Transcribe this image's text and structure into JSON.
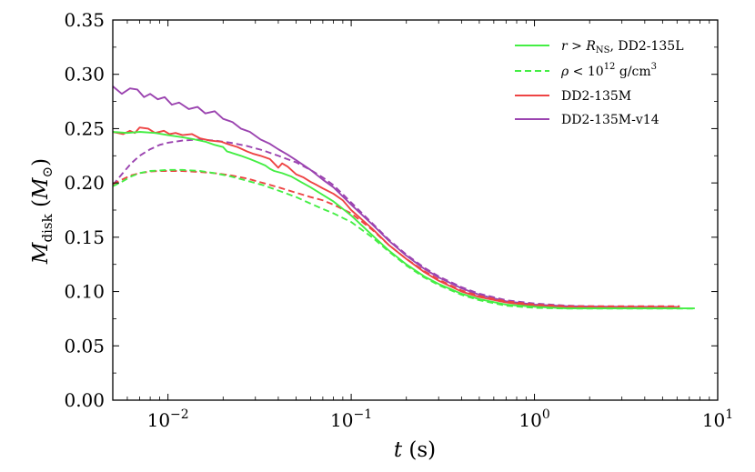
{
  "chart_data": {
    "type": "line",
    "title": "",
    "xlabel": "t (s)",
    "ylabel": "M_disk (M_⊙)",
    "xscale": "log",
    "xlim": [
      0.005,
      10
    ],
    "ylim": [
      0.0,
      0.35
    ],
    "grid": false,
    "legend_position": "top-right",
    "x_ticks": [
      {
        "value": 0.01,
        "base": "10",
        "exp": "−2"
      },
      {
        "value": 0.1,
        "base": "10",
        "exp": "−1"
      },
      {
        "value": 1,
        "base": "10",
        "exp": "0"
      },
      {
        "value": 10,
        "base": "10",
        "exp": "1"
      }
    ],
    "y_ticks": [
      "0.00",
      "0.05",
      "0.10",
      "0.15",
      "0.20",
      "0.25",
      "0.30",
      "0.35"
    ],
    "legend": [
      {
        "label_parts": [
          "r",
          " > ",
          "R",
          "NS",
          ", DD2-135L"
        ],
        "color": "#44ee44",
        "dash": "solid"
      },
      {
        "label_parts": [
          "ρ",
          " < 10",
          "12",
          " g/cm",
          "3"
        ],
        "color": "#44ee44",
        "dash": "dashed"
      },
      {
        "label": "DD2-135M",
        "color": "#ee4444",
        "dash": "solid"
      },
      {
        "label": "DD2-135M-v14",
        "color": "#9b44b0",
        "dash": "solid"
      }
    ],
    "series": [
      {
        "name": "DD2-135M-v14 (r > R_NS)",
        "color": "#9b44b0",
        "dash": "solid",
        "points": [
          [
            0.005,
            0.289
          ],
          [
            0.0056,
            0.282
          ],
          [
            0.0062,
            0.287
          ],
          [
            0.0068,
            0.286
          ],
          [
            0.0074,
            0.279
          ],
          [
            0.008,
            0.282
          ],
          [
            0.0088,
            0.277
          ],
          [
            0.0096,
            0.279
          ],
          [
            0.0105,
            0.272
          ],
          [
            0.0115,
            0.274
          ],
          [
            0.013,
            0.268
          ],
          [
            0.0145,
            0.27
          ],
          [
            0.016,
            0.264
          ],
          [
            0.018,
            0.266
          ],
          [
            0.02,
            0.259
          ],
          [
            0.0225,
            0.256
          ],
          [
            0.025,
            0.25
          ],
          [
            0.028,
            0.247
          ],
          [
            0.032,
            0.24
          ],
          [
            0.036,
            0.236
          ],
          [
            0.04,
            0.231
          ],
          [
            0.045,
            0.226
          ],
          [
            0.05,
            0.221
          ],
          [
            0.06,
            0.212
          ],
          [
            0.07,
            0.203
          ],
          [
            0.08,
            0.196
          ],
          [
            0.1,
            0.18
          ],
          [
            0.13,
            0.162
          ],
          [
            0.16,
            0.147
          ],
          [
            0.2,
            0.133
          ],
          [
            0.25,
            0.121
          ],
          [
            0.3,
            0.113
          ],
          [
            0.4,
            0.103
          ],
          [
            0.5,
            0.097
          ],
          [
            0.7,
            0.091
          ],
          [
            1.0,
            0.088
          ],
          [
            1.5,
            0.0865
          ],
          [
            2,
            0.0862
          ],
          [
            3,
            0.086
          ],
          [
            4,
            0.086
          ],
          [
            6.2,
            0.0858
          ]
        ]
      },
      {
        "name": "DD2-135M-v14 (ρ < 10^12)",
        "color": "#9b44b0",
        "dash": "dashed",
        "points": [
          [
            0.005,
            0.198
          ],
          [
            0.0056,
            0.208
          ],
          [
            0.0063,
            0.218
          ],
          [
            0.007,
            0.225
          ],
          [
            0.008,
            0.231
          ],
          [
            0.009,
            0.235
          ],
          [
            0.01,
            0.237
          ],
          [
            0.012,
            0.239
          ],
          [
            0.015,
            0.24
          ],
          [
            0.018,
            0.239
          ],
          [
            0.022,
            0.237
          ],
          [
            0.027,
            0.234
          ],
          [
            0.033,
            0.23
          ],
          [
            0.04,
            0.225
          ],
          [
            0.05,
            0.219
          ],
          [
            0.06,
            0.212
          ],
          [
            0.07,
            0.205
          ],
          [
            0.08,
            0.198
          ],
          [
            0.1,
            0.182
          ],
          [
            0.13,
            0.163
          ],
          [
            0.16,
            0.148
          ],
          [
            0.2,
            0.134
          ],
          [
            0.25,
            0.122
          ],
          [
            0.3,
            0.114
          ],
          [
            0.4,
            0.104
          ],
          [
            0.5,
            0.098
          ],
          [
            0.7,
            0.092
          ],
          [
            1.0,
            0.089
          ],
          [
            1.5,
            0.087
          ],
          [
            2,
            0.0865
          ],
          [
            3,
            0.086
          ],
          [
            4,
            0.086
          ],
          [
            6.2,
            0.086
          ]
        ]
      },
      {
        "name": "DD2-135M (r > R_NS)",
        "color": "#ee4444",
        "dash": "solid",
        "points": [
          [
            0.005,
            0.247
          ],
          [
            0.0057,
            0.245
          ],
          [
            0.0062,
            0.248
          ],
          [
            0.0066,
            0.246
          ],
          [
            0.007,
            0.251
          ],
          [
            0.0078,
            0.25
          ],
          [
            0.0085,
            0.246
          ],
          [
            0.0095,
            0.248
          ],
          [
            0.0102,
            0.245
          ],
          [
            0.011,
            0.246
          ],
          [
            0.012,
            0.244
          ],
          [
            0.0135,
            0.245
          ],
          [
            0.015,
            0.241
          ],
          [
            0.017,
            0.239
          ],
          [
            0.0195,
            0.238
          ],
          [
            0.021,
            0.236
          ],
          [
            0.024,
            0.233
          ],
          [
            0.027,
            0.229
          ],
          [
            0.029,
            0.227
          ],
          [
            0.032,
            0.225
          ],
          [
            0.036,
            0.222
          ],
          [
            0.04,
            0.214
          ],
          [
            0.042,
            0.218
          ],
          [
            0.045,
            0.215
          ],
          [
            0.05,
            0.208
          ],
          [
            0.055,
            0.205
          ],
          [
            0.06,
            0.201
          ],
          [
            0.065,
            0.198
          ],
          [
            0.07,
            0.195
          ],
          [
            0.08,
            0.19
          ],
          [
            0.09,
            0.184
          ],
          [
            0.1,
            0.175
          ],
          [
            0.13,
            0.158
          ],
          [
            0.16,
            0.143
          ],
          [
            0.2,
            0.13
          ],
          [
            0.25,
            0.118
          ],
          [
            0.3,
            0.11
          ],
          [
            0.4,
            0.1
          ],
          [
            0.5,
            0.095
          ],
          [
            0.7,
            0.09
          ],
          [
            1.0,
            0.087
          ],
          [
            1.5,
            0.0855
          ],
          [
            2,
            0.0855
          ],
          [
            3,
            0.0855
          ],
          [
            4,
            0.0855
          ],
          [
            6.2,
            0.0855
          ]
        ]
      },
      {
        "name": "DD2-135M (ρ < 10^12)",
        "color": "#ee4444",
        "dash": "dashed",
        "points": [
          [
            0.005,
            0.199
          ],
          [
            0.0056,
            0.203
          ],
          [
            0.0063,
            0.207
          ],
          [
            0.007,
            0.209
          ],
          [
            0.008,
            0.2105
          ],
          [
            0.009,
            0.211
          ],
          [
            0.01,
            0.211
          ],
          [
            0.012,
            0.211
          ],
          [
            0.015,
            0.21
          ],
          [
            0.018,
            0.209
          ],
          [
            0.022,
            0.207
          ],
          [
            0.027,
            0.204
          ],
          [
            0.033,
            0.2
          ],
          [
            0.04,
            0.196
          ],
          [
            0.05,
            0.191
          ],
          [
            0.06,
            0.187
          ],
          [
            0.07,
            0.184
          ],
          [
            0.08,
            0.18
          ],
          [
            0.1,
            0.172
          ],
          [
            0.13,
            0.157
          ],
          [
            0.16,
            0.143
          ],
          [
            0.2,
            0.13
          ],
          [
            0.25,
            0.119
          ],
          [
            0.3,
            0.111
          ],
          [
            0.4,
            0.101
          ],
          [
            0.5,
            0.096
          ],
          [
            0.7,
            0.091
          ],
          [
            1.0,
            0.088
          ],
          [
            1.5,
            0.0865
          ],
          [
            2,
            0.0865
          ],
          [
            3,
            0.0865
          ],
          [
            4,
            0.0865
          ],
          [
            6.2,
            0.0865
          ]
        ]
      },
      {
        "name": "DD2-135L (r > R_NS)",
        "color": "#44ee44",
        "dash": "solid",
        "points": [
          [
            0.005,
            0.247
          ],
          [
            0.006,
            0.246
          ],
          [
            0.007,
            0.247
          ],
          [
            0.0085,
            0.246
          ],
          [
            0.01,
            0.244
          ],
          [
            0.012,
            0.242
          ],
          [
            0.014,
            0.24
          ],
          [
            0.016,
            0.238
          ],
          [
            0.018,
            0.235
          ],
          [
            0.02,
            0.233
          ],
          [
            0.021,
            0.229
          ],
          [
            0.022,
            0.228
          ],
          [
            0.025,
            0.225
          ],
          [
            0.028,
            0.222
          ],
          [
            0.031,
            0.219
          ],
          [
            0.034,
            0.216
          ],
          [
            0.036,
            0.213
          ],
          [
            0.038,
            0.211
          ],
          [
            0.042,
            0.209
          ],
          [
            0.047,
            0.206
          ],
          [
            0.053,
            0.201
          ],
          [
            0.06,
            0.196
          ],
          [
            0.07,
            0.189
          ],
          [
            0.08,
            0.183
          ],
          [
            0.1,
            0.17
          ],
          [
            0.13,
            0.152
          ],
          [
            0.16,
            0.138
          ],
          [
            0.2,
            0.125
          ],
          [
            0.25,
            0.114
          ],
          [
            0.3,
            0.107
          ],
          [
            0.4,
            0.098
          ],
          [
            0.5,
            0.093
          ],
          [
            0.7,
            0.088
          ],
          [
            1.0,
            0.086
          ],
          [
            1.5,
            0.0845
          ],
          [
            2,
            0.0845
          ],
          [
            3,
            0.0845
          ],
          [
            5,
            0.0845
          ],
          [
            7.5,
            0.0845
          ]
        ]
      },
      {
        "name": "DD2-135L (ρ < 10^12)",
        "color": "#44ee44",
        "dash": "dashed",
        "points": [
          [
            0.005,
            0.197
          ],
          [
            0.0056,
            0.201
          ],
          [
            0.0063,
            0.206
          ],
          [
            0.007,
            0.209
          ],
          [
            0.008,
            0.211
          ],
          [
            0.009,
            0.2115
          ],
          [
            0.01,
            0.212
          ],
          [
            0.012,
            0.212
          ],
          [
            0.015,
            0.211
          ],
          [
            0.018,
            0.209
          ],
          [
            0.022,
            0.206
          ],
          [
            0.027,
            0.202
          ],
          [
            0.033,
            0.198
          ],
          [
            0.04,
            0.193
          ],
          [
            0.05,
            0.187
          ],
          [
            0.06,
            0.181
          ],
          [
            0.07,
            0.176
          ],
          [
            0.08,
            0.172
          ],
          [
            0.1,
            0.164
          ],
          [
            0.13,
            0.15
          ],
          [
            0.16,
            0.137
          ],
          [
            0.2,
            0.124
          ],
          [
            0.25,
            0.113
          ],
          [
            0.3,
            0.106
          ],
          [
            0.4,
            0.097
          ],
          [
            0.5,
            0.092
          ],
          [
            0.7,
            0.087
          ],
          [
            1.0,
            0.085
          ],
          [
            1.5,
            0.0843
          ],
          [
            2,
            0.0843
          ],
          [
            3,
            0.0843
          ],
          [
            5,
            0.0843
          ],
          [
            7.5,
            0.0843
          ]
        ]
      }
    ]
  }
}
